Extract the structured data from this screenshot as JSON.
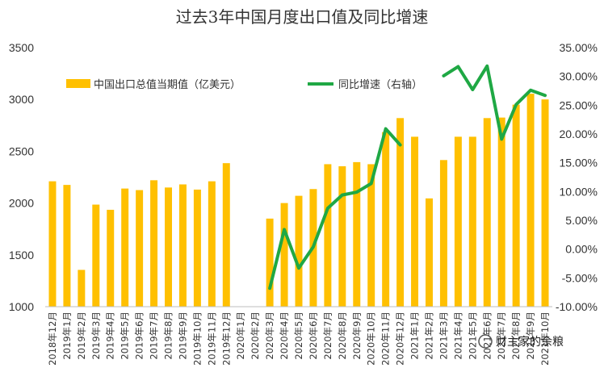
{
  "chart_data": {
    "type": "bar",
    "title": "过去3年中国月度出口值及同比增速",
    "categories": [
      "2018年12月",
      "2019年1月",
      "2019年2月",
      "2019年3月",
      "2019年4月",
      "2019年5月",
      "2019年6月",
      "2019年7月",
      "2019年8月",
      "2019年9月",
      "2019年10月",
      "2019年11月",
      "2019年12月",
      "2020年1月",
      "2020年2月",
      "2020年3月",
      "2020年4月",
      "2020年5月",
      "2020年6月",
      "2020年7月",
      "2020年8月",
      "2020年9月",
      "2020年10月",
      "2020年11月",
      "2020年12月",
      "2021年1月",
      "2021年2月",
      "2021年3月",
      "2021年4月",
      "2021年5月",
      "2021年6月",
      "2021年7月",
      "2021年8月",
      "2021年9月",
      "2021年10月"
    ],
    "series": [
      {
        "name": "中国出口总值当期值（亿美元）",
        "type": "bar",
        "axis": "left",
        "color": "#FFC000",
        "values": [
          2210,
          2175,
          1355,
          1985,
          1935,
          2140,
          2125,
          2220,
          2150,
          2180,
          2130,
          2210,
          2385,
          null,
          null,
          1850,
          2000,
          2070,
          2135,
          2375,
          2355,
          2395,
          2375,
          2685,
          2820,
          2640,
          2045,
          2415,
          2640,
          2640,
          2820,
          2825,
          2950,
          3055,
          3000
        ]
      },
      {
        "name": "同比增速（右轴）",
        "type": "line",
        "axis": "right",
        "color": "#1FA844",
        "values": [
          null,
          null,
          null,
          null,
          null,
          null,
          null,
          null,
          null,
          null,
          null,
          null,
          null,
          null,
          null,
          -6.8,
          3.4,
          -3.3,
          0.4,
          7.1,
          9.4,
          9.9,
          11.4,
          20.9,
          18.1,
          null,
          null,
          30.1,
          31.7,
          27.7,
          31.8,
          19.1,
          25.1,
          27.6,
          26.7
        ]
      }
    ],
    "ylim": [
      1000,
      3500
    ],
    "yticks": [
      1000,
      1500,
      2000,
      2500,
      3000,
      3500
    ],
    "ylim_right": [
      -10,
      35
    ],
    "yticks_right": [
      "-10.00%",
      "-5.00%",
      "0.00%",
      "5.00%",
      "10.00%",
      "15.00%",
      "20.00%",
      "25.00%",
      "30.00%",
      "35.00%"
    ],
    "xlabel": "",
    "ylabel": "",
    "grid": false,
    "legend_position": "top-left"
  },
  "watermark": "财主家的余粮"
}
